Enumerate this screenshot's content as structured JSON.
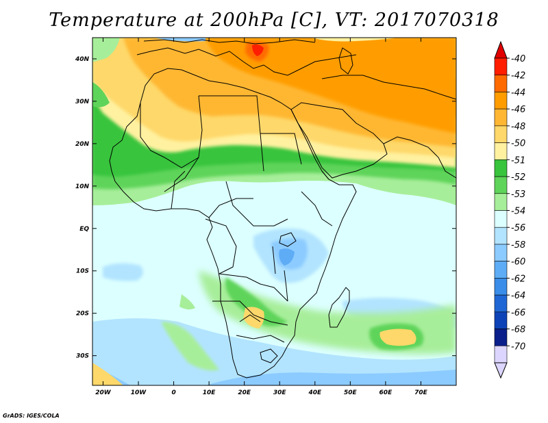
{
  "title": "Temperature at 200hPa [C], VT: 2017070318",
  "credit": "GrADS: IGES/COLA",
  "map": {
    "lon_range": [
      -23,
      80
    ],
    "lat_range": [
      -37,
      45
    ],
    "lat_ticks": [
      {
        "value": 40,
        "label": "40N"
      },
      {
        "value": 30,
        "label": "30N"
      },
      {
        "value": 20,
        "label": "20N"
      },
      {
        "value": 10,
        "label": "10N"
      },
      {
        "value": 0,
        "label": "EQ"
      },
      {
        "value": -10,
        "label": "10S"
      },
      {
        "value": -20,
        "label": "20S"
      },
      {
        "value": -30,
        "label": "30S"
      }
    ],
    "lon_ticks": [
      {
        "value": -20,
        "label": "20W"
      },
      {
        "value": -10,
        "label": "10W"
      },
      {
        "value": 0,
        "label": "0"
      },
      {
        "value": 10,
        "label": "10E"
      },
      {
        "value": 20,
        "label": "20E"
      },
      {
        "value": 30,
        "label": "30E"
      },
      {
        "value": 40,
        "label": "40E"
      },
      {
        "value": 50,
        "label": "50E"
      },
      {
        "value": 60,
        "label": "60E"
      },
      {
        "value": 70,
        "label": "70E"
      }
    ]
  },
  "colorbar": {
    "levels": [
      {
        "label": "-40",
        "color": "#ff1e00"
      },
      {
        "label": "-42",
        "color": "#ff6a00"
      },
      {
        "label": "-44",
        "color": "#ff9d00"
      },
      {
        "label": "-46",
        "color": "#ffb733"
      },
      {
        "label": "-48",
        "color": "#fed86a"
      },
      {
        "label": "-50",
        "color": "#fff1a0"
      },
      {
        "label": "-51",
        "color": "#39c43d"
      },
      {
        "label": "-52",
        "color": "#5fd45a"
      },
      {
        "label": "-53",
        "color": "#a7ee9a"
      },
      {
        "label": "-54",
        "color": "#dcffff"
      },
      {
        "label": "-56",
        "color": "#b2e4ff"
      },
      {
        "label": "-58",
        "color": "#8ccbff"
      },
      {
        "label": "-60",
        "color": "#5eacf5"
      },
      {
        "label": "-62",
        "color": "#3a8de8"
      },
      {
        "label": "-64",
        "color": "#2067d6"
      },
      {
        "label": "-66",
        "color": "#0e43b8"
      },
      {
        "label": "-68",
        "color": "#0a1f8a"
      },
      {
        "label": "-70",
        "color": "#dcd6ff"
      }
    ],
    "top_arrow_color": "#e00000",
    "bottom_arrow_color": "#dcd6ff"
  }
}
